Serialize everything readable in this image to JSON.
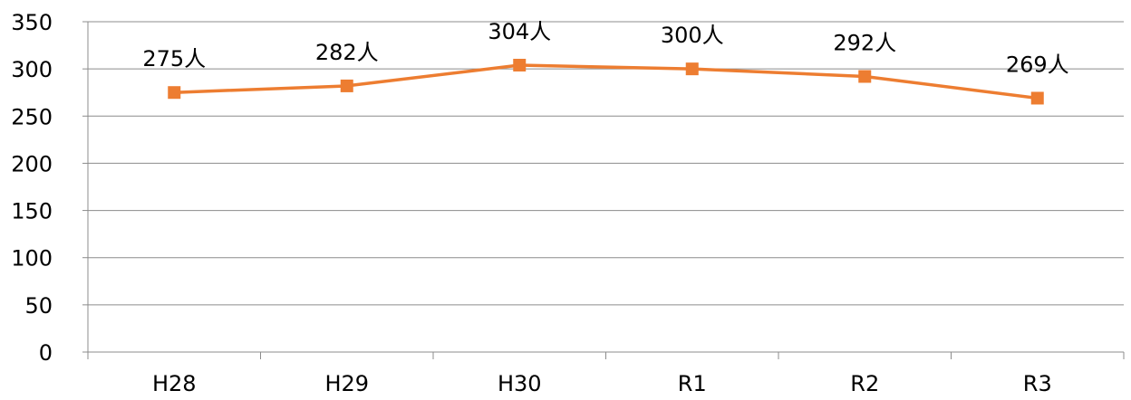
{
  "chart_data": {
    "type": "line",
    "categories": [
      "H28",
      "H29",
      "H30",
      "R1",
      "R2",
      "R3"
    ],
    "series": [
      {
        "values": [
          275,
          282,
          304,
          300,
          292,
          269
        ],
        "color": "#ED7D31",
        "marker": "square"
      }
    ],
    "data_labels": [
      "275人",
      "282人",
      "304人",
      "300人",
      "292人",
      "269人"
    ],
    "yticks": [
      "0",
      "50",
      "100",
      "150",
      "200",
      "250",
      "300",
      "350"
    ],
    "ylim": [
      0,
      350
    ],
    "grid": true,
    "legend": "none",
    "title": "",
    "xlabel": "",
    "ylabel": ""
  }
}
